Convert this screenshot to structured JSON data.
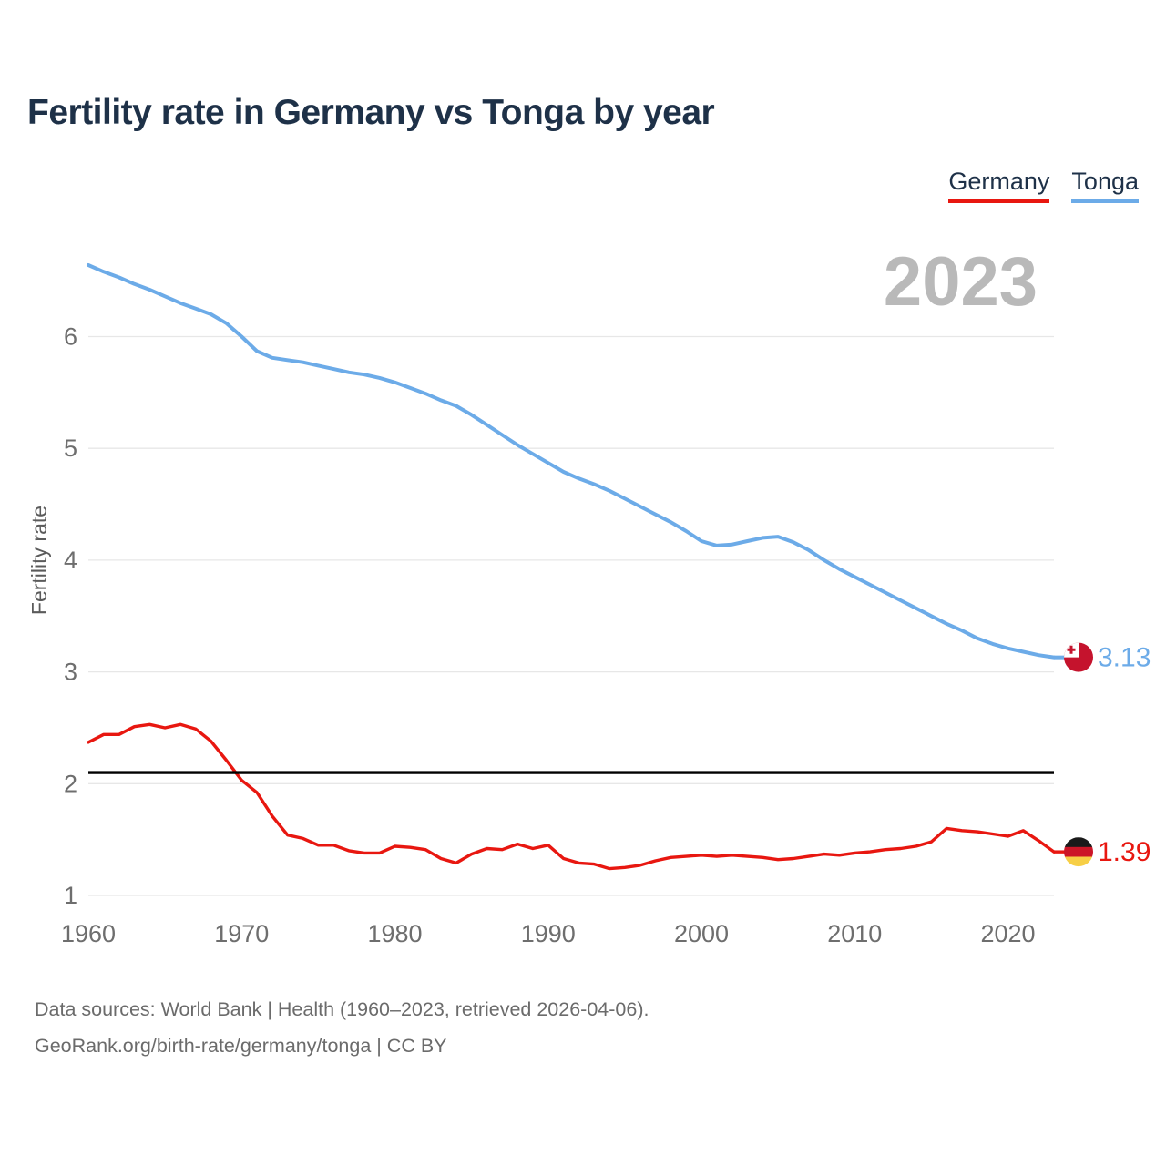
{
  "header": {
    "title": "Fertility rate in Germany vs Tonga by year"
  },
  "legend": {
    "items": [
      {
        "label": "Germany",
        "color": "#e81710"
      },
      {
        "label": "Tonga",
        "color": "#6cabe8"
      }
    ]
  },
  "chart": {
    "watermark": "2023"
  },
  "chart_data": {
    "type": "line",
    "title": "Fertility rate in Germany vs Tonga by year",
    "xlabel": "",
    "ylabel": "Fertility rate",
    "grid": "horizontal",
    "legend_position": "top-right",
    "xlim": [
      1960,
      2023
    ],
    "ylim": [
      1,
      6.8
    ],
    "y_ticks": [
      1,
      2,
      3,
      4,
      5,
      6
    ],
    "x_ticks": [
      1960,
      1970,
      1980,
      1990,
      2000,
      2010,
      2020
    ],
    "reference_line": {
      "value": 2.1,
      "color": "#000000"
    },
    "x": [
      1960,
      1961,
      1962,
      1963,
      1964,
      1965,
      1966,
      1967,
      1968,
      1969,
      1970,
      1971,
      1972,
      1973,
      1974,
      1975,
      1976,
      1977,
      1978,
      1979,
      1980,
      1981,
      1982,
      1983,
      1984,
      1985,
      1986,
      1987,
      1988,
      1989,
      1990,
      1991,
      1992,
      1993,
      1994,
      1995,
      1996,
      1997,
      1998,
      1999,
      2000,
      2001,
      2002,
      2003,
      2004,
      2005,
      2006,
      2007,
      2008,
      2009,
      2010,
      2011,
      2012,
      2013,
      2014,
      2015,
      2016,
      2017,
      2018,
      2019,
      2020,
      2021,
      2022,
      2023
    ],
    "series": [
      {
        "name": "Tonga",
        "color": "#6cabe8",
        "end_label": "3.13",
        "values": [
          6.64,
          6.58,
          6.53,
          6.47,
          6.42,
          6.36,
          6.3,
          6.25,
          6.2,
          6.12,
          6.0,
          5.87,
          5.81,
          5.79,
          5.77,
          5.74,
          5.71,
          5.68,
          5.66,
          5.63,
          5.59,
          5.54,
          5.49,
          5.43,
          5.38,
          5.3,
          5.21,
          5.12,
          5.03,
          4.95,
          4.87,
          4.79,
          4.73,
          4.68,
          4.62,
          4.55,
          4.48,
          4.41,
          4.34,
          4.26,
          4.17,
          4.13,
          4.14,
          4.17,
          4.2,
          4.21,
          4.16,
          4.09,
          4.0,
          3.92,
          3.85,
          3.78,
          3.71,
          3.64,
          3.57,
          3.5,
          3.43,
          3.37,
          3.3,
          3.25,
          3.21,
          3.18,
          3.15,
          3.13
        ]
      },
      {
        "name": "Germany",
        "color": "#e81710",
        "end_label": "1.39",
        "values": [
          2.37,
          2.44,
          2.44,
          2.51,
          2.53,
          2.5,
          2.53,
          2.49,
          2.38,
          2.21,
          2.03,
          1.92,
          1.71,
          1.54,
          1.51,
          1.45,
          1.45,
          1.4,
          1.38,
          1.38,
          1.44,
          1.43,
          1.41,
          1.33,
          1.29,
          1.37,
          1.42,
          1.41,
          1.46,
          1.42,
          1.45,
          1.33,
          1.29,
          1.28,
          1.24,
          1.25,
          1.27,
          1.31,
          1.34,
          1.35,
          1.36,
          1.35,
          1.36,
          1.35,
          1.34,
          1.32,
          1.33,
          1.35,
          1.37,
          1.36,
          1.38,
          1.39,
          1.41,
          1.42,
          1.44,
          1.48,
          1.6,
          1.58,
          1.57,
          1.55,
          1.53,
          1.58,
          1.49,
          1.39
        ]
      }
    ]
  },
  "flags": {
    "tonga": {
      "base": "#c5132d",
      "canton": "#ffffff",
      "cross": "#c5132d"
    },
    "germany": {
      "bands": [
        "#1a1a1a",
        "#cc1627",
        "#f7cf46"
      ]
    }
  },
  "colors": {
    "title": "#1e3148",
    "axis_text": "#6e6e6e",
    "gridline": "#e7e7e7",
    "watermark": "#b9b9b9",
    "footer_text": "#6b6b6b",
    "reference_line": "#000000"
  },
  "footer": {
    "line1": "Data sources: World Bank | Health (1960–2023, retrieved 2026-04-06).",
    "line2": "GeoRank.org/birth-rate/germany/tonga | CC BY"
  }
}
